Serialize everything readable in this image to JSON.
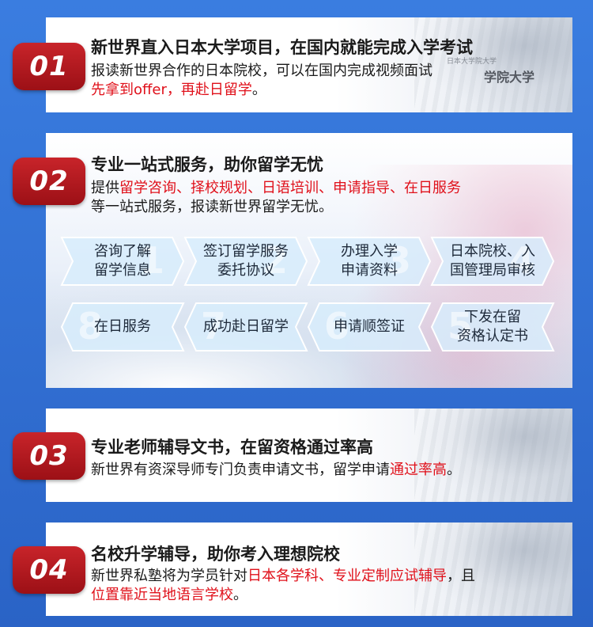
{
  "sections": [
    {
      "number": "01",
      "title": "新世界直入日本大学项目，在国内就能完成入学考试",
      "line1": "报读新世界合作的日本院校，可以在国内完成视频面试",
      "line2_red": "先拿到offer，再赴日留学",
      "line2_tail": "。",
      "watermark": "学院大学",
      "watermark_small": "日本大学院大学"
    },
    {
      "number": "02",
      "title": "专业一站式服务，助你留学无忧",
      "line1_lead": "提供",
      "line1_red": "留学咨询、择校规划、日语培训、申请指导、在日服务",
      "line2": "等一站式服务，报读新世界留学无忧。",
      "steps_row1": [
        {
          "num": "1",
          "label_a": "咨询了解",
          "label_b": "留学信息"
        },
        {
          "num": "2",
          "label_a": "签订留学服务",
          "label_b": "委托协议"
        },
        {
          "num": "3",
          "label_a": "办理入学",
          "label_b": "申请资料"
        },
        {
          "num": "4",
          "label_a": "日本院校、入",
          "label_b": "国管理局审核"
        }
      ],
      "steps_row2": [
        {
          "num": "8",
          "label_a": "在日服务",
          "label_b": ""
        },
        {
          "num": "7",
          "label_a": "成功赴日留学",
          "label_b": ""
        },
        {
          "num": "6",
          "label_a": "申请顺签证",
          "label_b": ""
        },
        {
          "num": "5",
          "label_a": "下发在留",
          "label_b": "资格认定书"
        }
      ]
    },
    {
      "number": "03",
      "title": "专业老师辅导文书，在留资格通过率高",
      "line1_lead": "新世界有资深导师专门负责申请文书，留学申请",
      "line1_red": "通过率高",
      "line1_tail": "。"
    },
    {
      "number": "04",
      "title": "名校升学辅导，助你考入理想院校",
      "line1_lead": "新世界私塾将为学员针对",
      "line1_red": "日本各学科、专业定制应试辅导",
      "line1_tail": "，且",
      "line2_red": "位置靠近当地语言学校",
      "line2_tail": "。"
    }
  ],
  "colors": {
    "background": "#2f6fd0",
    "badge": "#b81a20",
    "highlight": "#e0101a",
    "step_fill": "#d7ecfb"
  }
}
